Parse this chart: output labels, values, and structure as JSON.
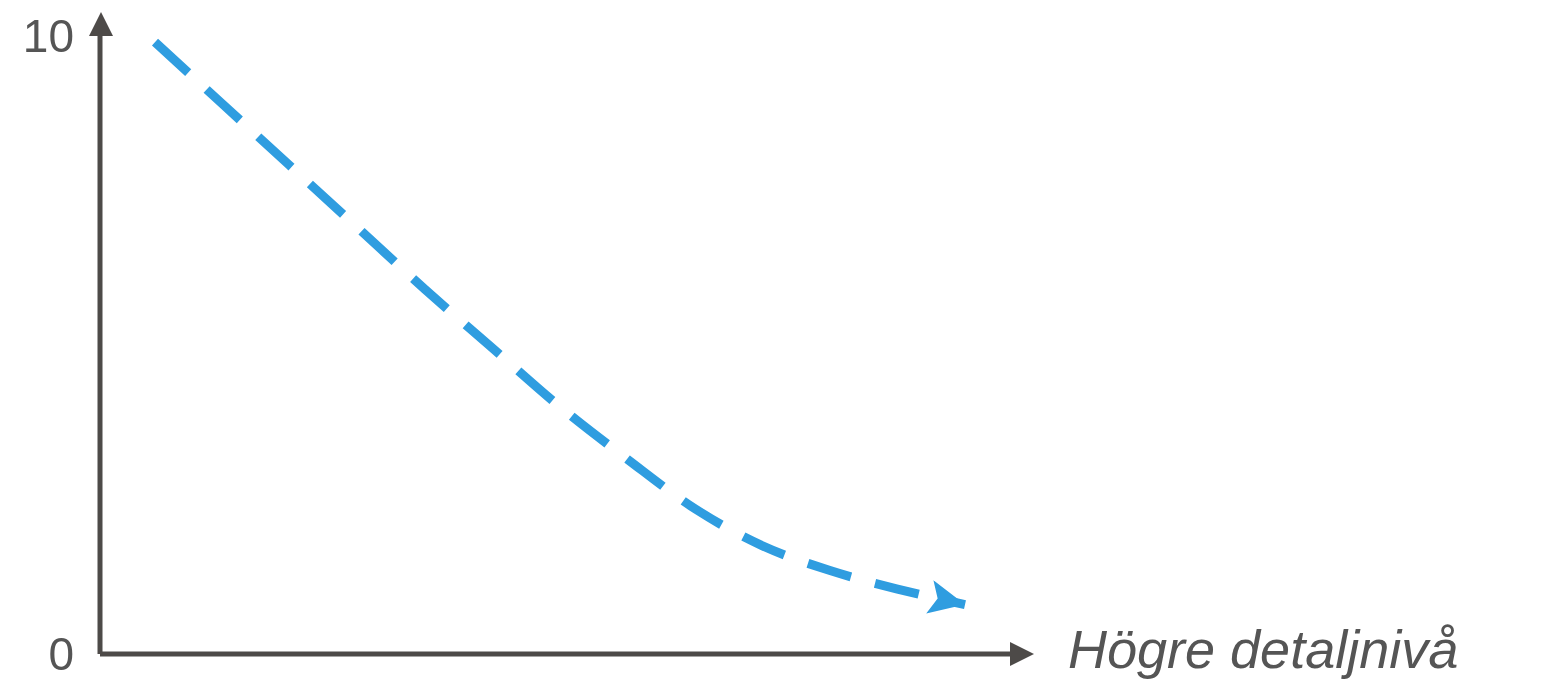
{
  "chart_data": {
    "type": "line",
    "xlabel": "Högre detaljnivå",
    "categories": [
      null,
      null,
      null,
      null,
      null,
      null,
      null,
      null,
      null,
      null,
      null,
      null,
      null
    ],
    "series": [
      {
        "color": "#2f9de0",
        "values": [
          9.9,
          8.9,
          7.9,
          6.9,
          5.9,
          4.95,
          4.0,
          3.15,
          2.35,
          1.75,
          1.35,
          1.05,
          0.8
        ]
      }
    ],
    "ylim": [
      0,
      10
    ],
    "yticks": [
      0,
      10
    ],
    "grid": false,
    "legend": false,
    "marker": "none",
    "line_style": "dashed"
  }
}
